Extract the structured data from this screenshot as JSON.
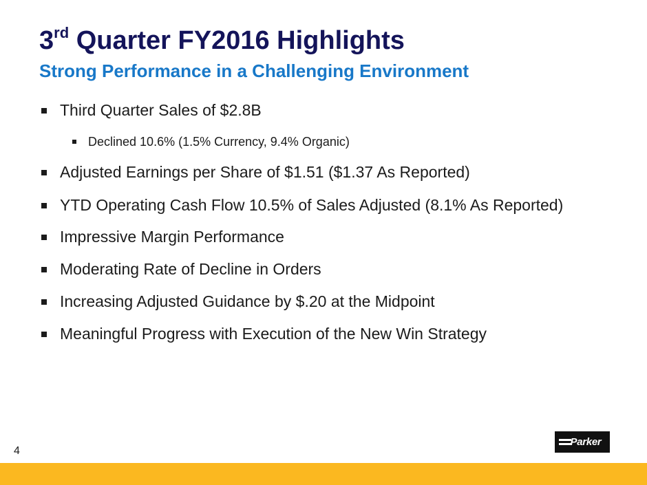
{
  "slide": {
    "title_main": "3",
    "title_sup": "rd",
    "title_rest": " Quarter FY2016 Highlights",
    "subtitle": "Strong Performance in a Challenging Environment",
    "bullets": [
      {
        "text": "Third Quarter Sales of $2.8B",
        "level": 1
      },
      {
        "text": "Declined 10.6% (1.5% Currency, 9.4% Organic)",
        "level": 2
      },
      {
        "text": "Adjusted Earnings per Share of $1.51 ($1.37 As Reported)",
        "level": 1
      },
      {
        "text": "YTD Operating Cash Flow 10.5% of Sales Adjusted (8.1% As Reported)",
        "level": 1
      },
      {
        "text": "Impressive Margin Performance",
        "level": 1
      },
      {
        "text": "Moderating Rate of Decline in Orders",
        "level": 1
      },
      {
        "text": "Increasing Adjusted Guidance by $.20 at the Midpoint",
        "level": 1
      },
      {
        "text": "Meaningful Progress with Execution of the New Win Strategy",
        "level": 1
      }
    ],
    "page_number": "4",
    "logo_text": "Parker"
  },
  "colors": {
    "title": "#14145a",
    "subtitle": "#1878c8",
    "footer_bar": "#fbb820",
    "logo_bg": "#111111"
  }
}
